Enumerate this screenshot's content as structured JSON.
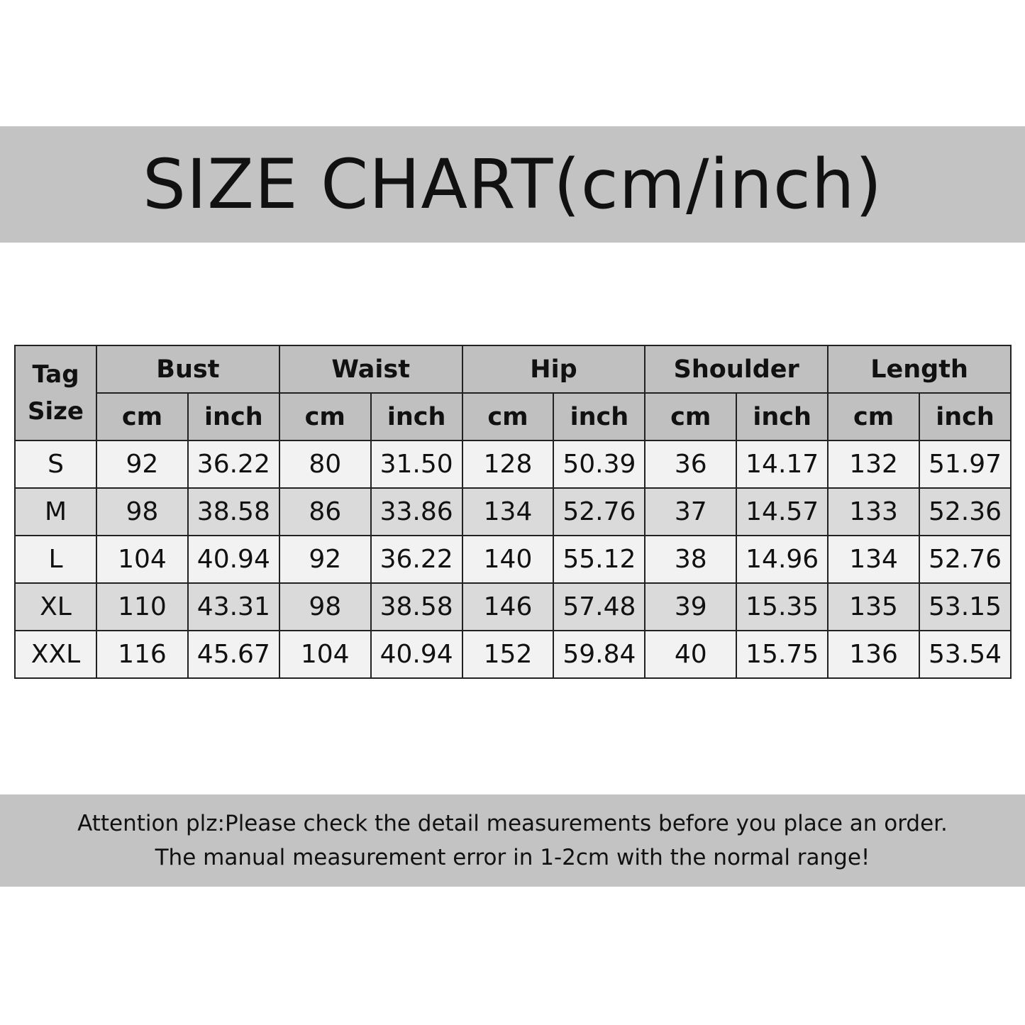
{
  "title": "SIZE CHART(cm/inch)",
  "footer": {
    "line1": "Attention plz:Please check the detail measurements before you place an order.",
    "line2": "The manual measurement error in 1-2cm with the normal range!"
  },
  "colors": {
    "band": "#c3c3c3",
    "header": "#c0c0c0",
    "row_light": "#f2f2f2",
    "row_dark": "#dadada"
  },
  "chart_data": {
    "type": "table",
    "title": "SIZE CHART(cm/inch)",
    "corner_header": [
      "Tag",
      "Size"
    ],
    "groups": [
      "Bust",
      "Waist",
      "Hip",
      "Shoulder",
      "Length"
    ],
    "units": [
      "cm",
      "inch"
    ],
    "rows": [
      {
        "size": "S",
        "values": [
          "92",
          "36.22",
          "80",
          "31.50",
          "128",
          "50.39",
          "36",
          "14.17",
          "132",
          "51.97"
        ]
      },
      {
        "size": "M",
        "values": [
          "98",
          "38.58",
          "86",
          "33.86",
          "134",
          "52.76",
          "37",
          "14.57",
          "133",
          "52.36"
        ]
      },
      {
        "size": "L",
        "values": [
          "104",
          "40.94",
          "92",
          "36.22",
          "140",
          "55.12",
          "38",
          "14.96",
          "134",
          "52.76"
        ]
      },
      {
        "size": "XL",
        "values": [
          "110",
          "43.31",
          "98",
          "38.58",
          "146",
          "57.48",
          "39",
          "15.35",
          "135",
          "53.15"
        ]
      },
      {
        "size": "XXL",
        "values": [
          "116",
          "45.67",
          "104",
          "40.94",
          "152",
          "59.84",
          "40",
          "15.75",
          "136",
          "53.54"
        ]
      }
    ]
  }
}
